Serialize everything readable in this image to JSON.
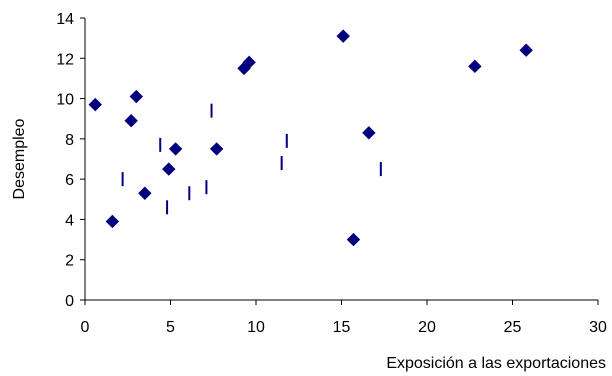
{
  "chart_data": {
    "type": "scatter",
    "xlabel": "Exposición a las exportaciones",
    "ylabel": "Desempleo",
    "xlim": [
      0,
      30
    ],
    "ylim": [
      0,
      14
    ],
    "x_ticks": [
      "0",
      "5",
      "10",
      "15",
      "20",
      "25",
      "30"
    ],
    "y_ticks": [
      "0",
      "2",
      "4",
      "6",
      "8",
      "10",
      "12",
      "14"
    ],
    "grid": false,
    "legend": "none",
    "series": [
      {
        "marker": "diamond",
        "color": "#00007f",
        "points": [
          {
            "x": 0.6,
            "y": 9.7
          },
          {
            "x": 1.6,
            "y": 3.9
          },
          {
            "x": 2.7,
            "y": 8.9
          },
          {
            "x": 3.0,
            "y": 10.1
          },
          {
            "x": 3.5,
            "y": 5.3
          },
          {
            "x": 4.9,
            "y": 6.5
          },
          {
            "x": 5.3,
            "y": 7.5
          },
          {
            "x": 7.7,
            "y": 7.5
          },
          {
            "x": 9.3,
            "y": 11.5
          },
          {
            "x": 9.6,
            "y": 11.8
          },
          {
            "x": 15.1,
            "y": 13.1
          },
          {
            "x": 15.7,
            "y": 3.0
          },
          {
            "x": 16.6,
            "y": 8.3
          },
          {
            "x": 22.8,
            "y": 11.6
          },
          {
            "x": 25.8,
            "y": 12.4
          }
        ]
      },
      {
        "marker": "dash",
        "color": "#00007f",
        "points": [
          {
            "x": 2.2,
            "y": 6.0
          },
          {
            "x": 4.4,
            "y": 7.7
          },
          {
            "x": 4.8,
            "y": 4.6
          },
          {
            "x": 6.1,
            "y": 5.3
          },
          {
            "x": 7.1,
            "y": 5.6
          },
          {
            "x": 7.4,
            "y": 9.4
          },
          {
            "x": 11.5,
            "y": 6.8
          },
          {
            "x": 11.8,
            "y": 7.9
          },
          {
            "x": 17.3,
            "y": 6.5
          }
        ]
      }
    ]
  }
}
